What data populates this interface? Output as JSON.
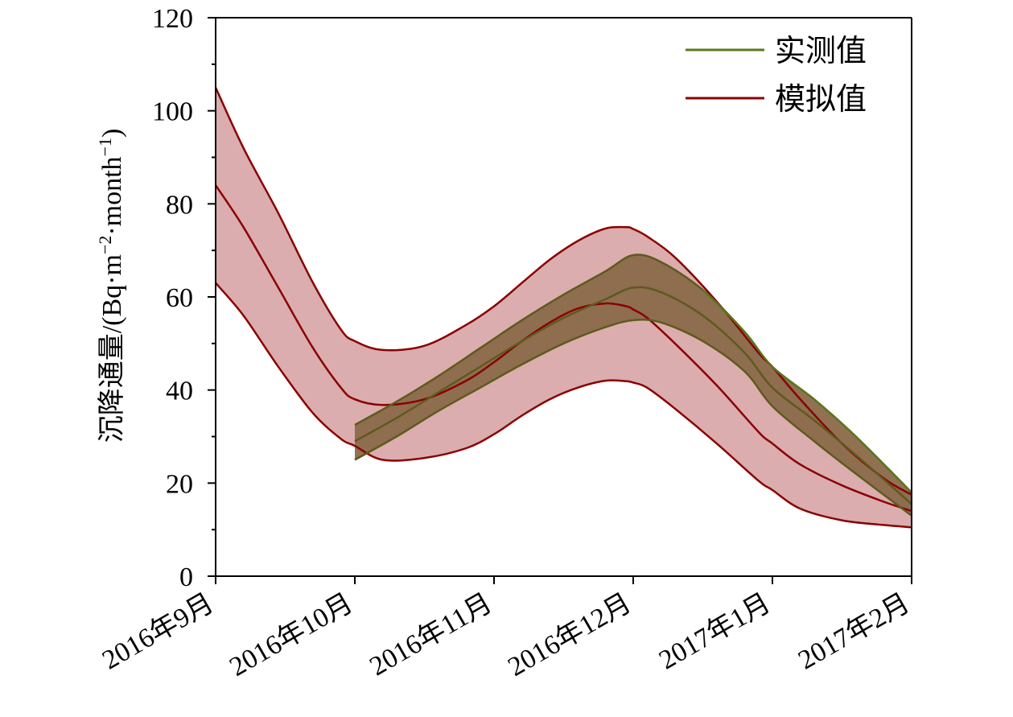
{
  "chart_data": {
    "type": "area",
    "title": "",
    "xlabel": "",
    "ylabel": "沉降通量/(Bq·m⁻²·month⁻¹)",
    "ylim": [
      0,
      120
    ],
    "yticks": [
      0,
      20,
      40,
      60,
      80,
      100,
      120
    ],
    "x": [
      "2016年9月",
      "2016年10月",
      "2016年11月",
      "2016年12月",
      "2017年1月",
      "2017年2月"
    ],
    "grid": false,
    "legend_position": "top-right",
    "legend": [
      {
        "name": "实测值",
        "color": "#5a7a1a"
      },
      {
        "name": "模拟值",
        "color": "#8b0000"
      }
    ],
    "series": [
      {
        "name": "模拟值",
        "color": "#8b0000",
        "fill": "#d9a9aa",
        "x_pos": [
          0,
          0.2,
          0.45,
          0.7,
          0.9,
          1,
          1.2,
          1.5,
          1.8,
          2,
          2.2,
          2.4,
          2.6,
          2.8,
          2.95,
          3,
          3.1,
          3.3,
          3.6,
          3.9,
          4,
          4.2,
          4.5,
          4.8,
          5
        ],
        "mid": [
          84,
          75,
          62,
          49,
          40.5,
          38,
          36.8,
          38,
          42,
          46,
          50.5,
          54.5,
          57.5,
          58.6,
          58,
          57.3,
          55.5,
          50,
          41,
          31,
          28.5,
          24,
          19.5,
          16,
          14
        ],
        "upper": [
          105,
          92,
          78,
          63,
          53,
          50.5,
          48.6,
          49.5,
          54,
          58,
          63,
          68,
          72,
          74.7,
          75,
          74.6,
          73,
          68.5,
          59,
          48,
          45,
          38,
          28.5,
          21,
          17.5
        ],
        "lower": [
          63,
          56,
          45,
          35,
          29.5,
          28,
          25,
          25.4,
          27.5,
          30.5,
          34.5,
          38,
          40.5,
          42,
          41.9,
          41.6,
          40.5,
          36,
          28.5,
          20.5,
          18.5,
          14.5,
          12,
          11,
          10.5
        ]
      },
      {
        "name": "实测值",
        "color": "#5a7a1a",
        "fill": "#8a6a4a",
        "x_pos": [
          1,
          1.3,
          1.6,
          1.9,
          2.2,
          2.5,
          2.8,
          3,
          3.2,
          3.5,
          3.8,
          4,
          4.3,
          4.6,
          5
        ],
        "mid": [
          29,
          34,
          39.5,
          45,
          50.5,
          55.5,
          59.5,
          62,
          61,
          56,
          48,
          40.5,
          33.5,
          26,
          15.5
        ],
        "upper": [
          32.5,
          37.5,
          43,
          49,
          55,
          60.5,
          65.5,
          69,
          67.5,
          61.5,
          52.5,
          45,
          38,
          30,
          18
        ],
        "lower": [
          25,
          30,
          35.5,
          40.5,
          45.5,
          50,
          53.5,
          55,
          54.5,
          50.5,
          44,
          36.5,
          29,
          22,
          13
        ]
      }
    ]
  }
}
